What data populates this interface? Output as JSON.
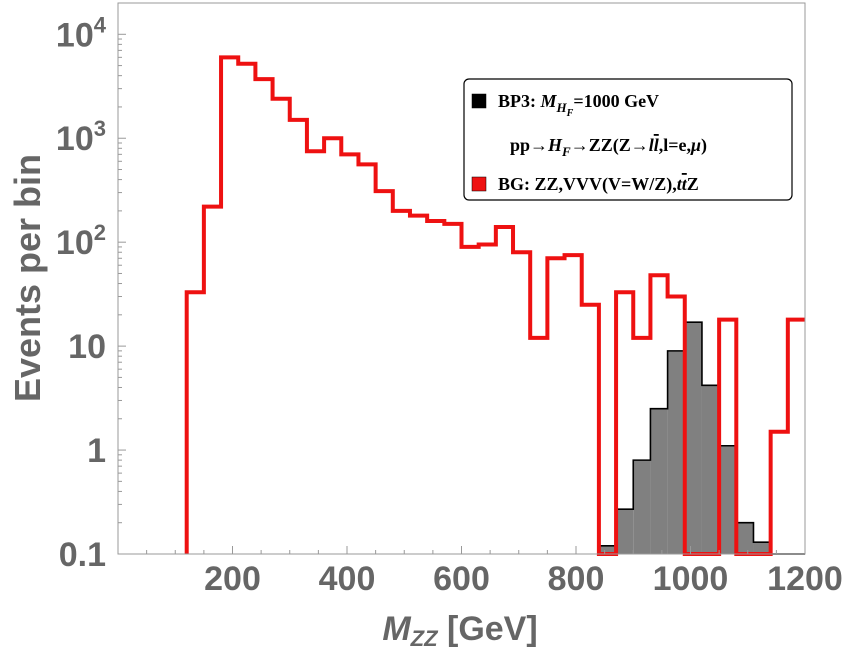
{
  "chart_data": {
    "type": "histogram",
    "scale": "log",
    "title": "",
    "xlabel": "M_ZZ [GeV]",
    "xlabel_main": "M",
    "xlabel_sub": "ZZ",
    "xlabel_rest": " [GeV]",
    "ylabel": "Events per bin",
    "xlim": [
      0,
      1200
    ],
    "ylim": [
      0.1,
      20000
    ],
    "grid": false,
    "x_ticks": [
      {
        "value": 200,
        "label": "200"
      },
      {
        "value": 400,
        "label": "400"
      },
      {
        "value": 600,
        "label": "600"
      },
      {
        "value": 800,
        "label": "800"
      },
      {
        "value": 1000,
        "label": "1000"
      },
      {
        "value": 1200,
        "label": "1200"
      }
    ],
    "y_ticks": [
      {
        "value": 0.1,
        "label": "0.1"
      },
      {
        "value": 1,
        "label": "1"
      },
      {
        "value": 10,
        "label": "10"
      },
      {
        "value": 100,
        "label": "10",
        "exp": "2"
      },
      {
        "value": 1000,
        "label": "10",
        "exp": "3"
      },
      {
        "value": 10000,
        "label": "10",
        "exp": "4"
      }
    ],
    "bin_width": 30,
    "series": [
      {
        "name": "BP3: M_{H_F}=1000 GeV  pp→H_F→ZZ(Z→l l̄, l=e,μ)",
        "style": "filled",
        "fill": "#808080",
        "stroke": "#000000",
        "bins": [
          {
            "x0": 840,
            "value": 0.12
          },
          {
            "x0": 870,
            "value": 0.27
          },
          {
            "x0": 900,
            "value": 0.8
          },
          {
            "x0": 930,
            "value": 2.5
          },
          {
            "x0": 960,
            "value": 9.0
          },
          {
            "x0": 990,
            "value": 17.0
          },
          {
            "x0": 1020,
            "value": 4.2
          },
          {
            "x0": 1050,
            "value": 1.1
          },
          {
            "x0": 1080,
            "value": 0.2
          },
          {
            "x0": 1110,
            "value": 0.13
          },
          {
            "x0": 1140,
            "value": 0.1
          },
          {
            "x0": 1170,
            "value": 0.1
          }
        ]
      },
      {
        "name": "BG: ZZ,VVV(V=W/Z),t t̄ Z",
        "style": "step",
        "stroke": "#ee1111",
        "bins": [
          {
            "x0": 120,
            "value": 33
          },
          {
            "x0": 150,
            "value": 220
          },
          {
            "x0": 180,
            "value": 6000
          },
          {
            "x0": 210,
            "value": 5200
          },
          {
            "x0": 240,
            "value": 3700
          },
          {
            "x0": 270,
            "value": 2400
          },
          {
            "x0": 300,
            "value": 1500
          },
          {
            "x0": 330,
            "value": 750
          },
          {
            "x0": 360,
            "value": 1000
          },
          {
            "x0": 390,
            "value": 700
          },
          {
            "x0": 420,
            "value": 560
          },
          {
            "x0": 450,
            "value": 310
          },
          {
            "x0": 480,
            "value": 200
          },
          {
            "x0": 510,
            "value": 180
          },
          {
            "x0": 540,
            "value": 160
          },
          {
            "x0": 570,
            "value": 150
          },
          {
            "x0": 600,
            "value": 90
          },
          {
            "x0": 630,
            "value": 95
          },
          {
            "x0": 660,
            "value": 140
          },
          {
            "x0": 690,
            "value": 80
          },
          {
            "x0": 720,
            "value": 12
          },
          {
            "x0": 750,
            "value": 70
          },
          {
            "x0": 780,
            "value": 75
          },
          {
            "x0": 810,
            "value": 25
          },
          {
            "x0": 840,
            "value": 0.1
          },
          {
            "x0": 870,
            "value": 33
          },
          {
            "x0": 900,
            "value": 12
          },
          {
            "x0": 930,
            "value": 48
          },
          {
            "x0": 960,
            "value": 30
          },
          {
            "x0": 990,
            "value": 0.1
          },
          {
            "x0": 1020,
            "value": 0.1
          },
          {
            "x0": 1050,
            "value": 18
          },
          {
            "x0": 1080,
            "value": 0.1
          },
          {
            "x0": 1110,
            "value": 0.1
          },
          {
            "x0": 1140,
            "value": 1.5
          },
          {
            "x0": 1170,
            "value": 18
          }
        ]
      }
    ],
    "legend": {
      "placement": "top-right",
      "entries": [
        {
          "swatch": "#000000",
          "parts": [
            [
              "n",
              "BP3: "
            ],
            [
              "i",
              "M"
            ],
            [
              "s",
              "H"
            ],
            [
              "ss",
              "F"
            ],
            [
              "n",
              "=1000 GeV"
            ]
          ]
        },
        {
          "swatch": null,
          "parts": [
            [
              "n",
              "pp→"
            ],
            [
              "i",
              "H"
            ],
            [
              "s",
              "F"
            ],
            [
              "n",
              "→ZZ(Z→"
            ],
            [
              "i",
              "l"
            ],
            [
              "ib",
              "l"
            ],
            [
              "n",
              ",l=e,"
            ],
            [
              "i",
              "μ"
            ],
            [
              "n",
              ")"
            ]
          ]
        },
        {
          "swatch": "#ee1111",
          "parts": [
            [
              "n",
              "BG: ZZ,VVV(V=W/Z),"
            ],
            [
              "i",
              "t"
            ],
            [
              "ib",
              "t"
            ],
            [
              "n",
              "Z"
            ]
          ]
        }
      ]
    }
  }
}
